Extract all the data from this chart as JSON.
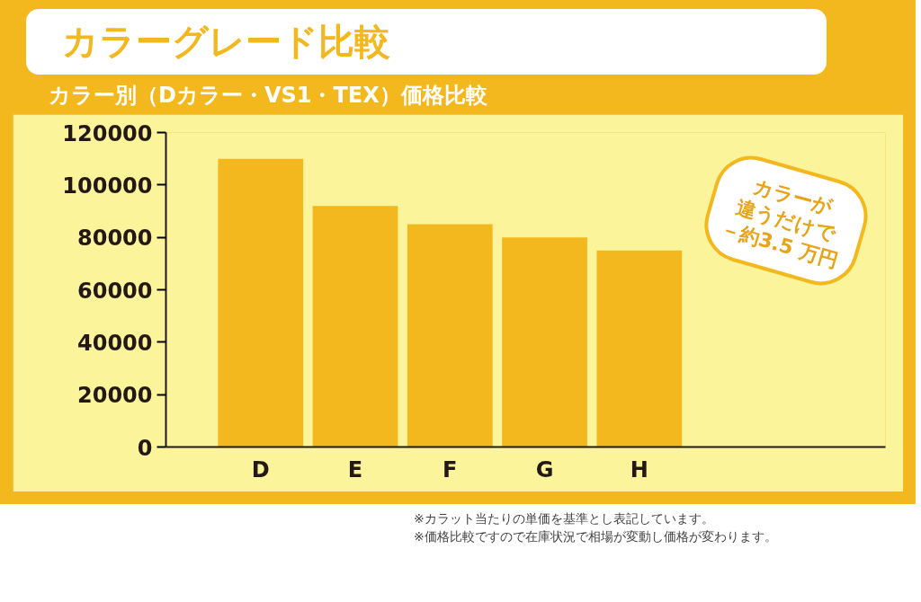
{
  "chart_data": {
    "type": "bar",
    "title": "カラーグレード比較",
    "subtitle": "カラー別（Dカラー・VS1・TEX）価格比較",
    "categories": [
      "D",
      "E",
      "F",
      "G",
      "H"
    ],
    "values": [
      110000,
      92000,
      85000,
      80000,
      75000
    ],
    "color": "#f2b81e",
    "ylim": [
      0,
      120000
    ],
    "yticks": [
      0,
      20000,
      40000,
      60000,
      80000,
      100000,
      120000
    ],
    "grid": false,
    "annotations": [
      {
        "text": "カラーが\n違うだけで\n－約3.5 万円"
      },
      "※カラット当たりの単価を基準とし表記しています。",
      "※価格比較ですので在庫状況で相場が変動し価格が変わります。"
    ]
  }
}
